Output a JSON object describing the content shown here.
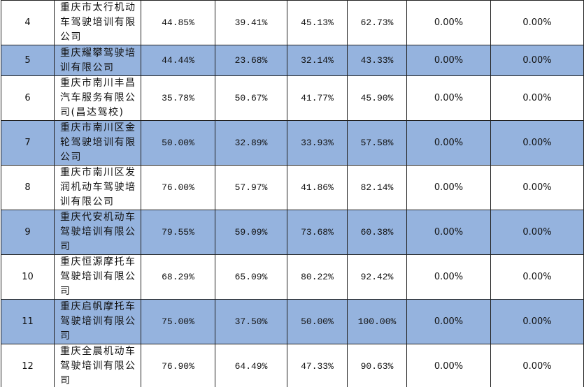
{
  "table": {
    "rows": [
      [
        "4",
        "重庆市太行机动车驾驶培训有限公司",
        "44.85%",
        "39.41%",
        "45.13%",
        "62.73%",
        "0.00%",
        "0.00%"
      ],
      [
        "5",
        "重庆耀攀驾驶培训有限公司",
        "44.44%",
        "23.68%",
        "32.14%",
        "43.33%",
        "0.00%",
        "0.00%"
      ],
      [
        "6",
        "重庆市南川丰昌汽车服务有限公司(昌达驾校)",
        "35.78%",
        "50.67%",
        "41.77%",
        "45.90%",
        "0.00%",
        "0.00%"
      ],
      [
        "7",
        "重庆市南川区金轮驾驶培训有限公司",
        "50.00%",
        "32.89%",
        "33.93%",
        "57.58%",
        "0.00%",
        "0.00%"
      ],
      [
        "8",
        "重庆市南川区发润机动车驾驶培训有限公司",
        "76.00%",
        "57.97%",
        "41.86%",
        "82.14%",
        "0.00%",
        "0.00%"
      ],
      [
        "9",
        "重庆代安机动车驾驶培训有限公司",
        "79.55%",
        "59.09%",
        "73.68%",
        "60.38%",
        "0.00%",
        "0.00%"
      ],
      [
        "10",
        "重庆恒源摩托车驾驶培训有限公司",
        "68.29%",
        "65.09%",
        "80.22%",
        "92.42%",
        "0.00%",
        "0.00%"
      ],
      [
        "11",
        "重庆启帆摩托车驾驶培训有限公司",
        "75.00%",
        "37.50%",
        "50.00%",
        "100.00%",
        "0.00%",
        "0.00%"
      ],
      [
        "12",
        "重庆全晨机动车驾驶培训有限公司",
        "76.90%",
        "64.49%",
        "47.33%",
        "90.63%",
        "0.00%",
        "0.00%"
      ]
    ]
  }
}
